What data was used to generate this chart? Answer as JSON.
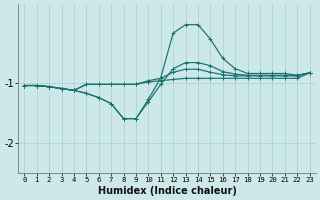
{
  "xlabel": "Humidex (Indice chaleur)",
  "bg_color": "#cce8e8",
  "grid_color": "#aacfcf",
  "line_color": "#1a7070",
  "xlim_min": -0.5,
  "xlim_max": 23.5,
  "ylim_min": -2.5,
  "ylim_max": 0.3,
  "yticks": [
    -2,
    -1
  ],
  "xticks": [
    0,
    1,
    2,
    3,
    4,
    5,
    6,
    7,
    8,
    9,
    10,
    11,
    12,
    13,
    14,
    15,
    16,
    17,
    18,
    19,
    20,
    21,
    22,
    23
  ],
  "series": [
    {
      "x": [
        0,
        1,
        2,
        3,
        4,
        5,
        6,
        7,
        8,
        9,
        10,
        11,
        12,
        13,
        14,
        15,
        16,
        17,
        18,
        19,
        20,
        21,
        22,
        23
      ],
      "y": [
        -1.05,
        -1.05,
        -1.07,
        -1.1,
        -1.13,
        -1.18,
        -1.25,
        -1.35,
        -1.6,
        -1.6,
        -1.32,
        -1.03,
        -0.77,
        -0.67,
        -0.67,
        -0.72,
        -0.82,
        -0.86,
        -0.88,
        -0.88,
        -0.88,
        -0.88,
        -0.88,
        -0.84
      ]
    },
    {
      "x": [
        0,
        1,
        2,
        3,
        4,
        5,
        6,
        7,
        8,
        9,
        10,
        11,
        12,
        13,
        14,
        15,
        16,
        17,
        18,
        19,
        20,
        21,
        22,
        23
      ],
      "y": [
        -1.05,
        -1.05,
        -1.07,
        -1.1,
        -1.13,
        -1.03,
        -1.03,
        -1.03,
        -1.03,
        -1.03,
        -0.99,
        -0.97,
        -0.95,
        -0.93,
        -0.93,
        -0.93,
        -0.93,
        -0.93,
        -0.93,
        -0.93,
        -0.93,
        -0.93,
        -0.93,
        -0.84
      ]
    },
    {
      "x": [
        0,
        1,
        2,
        3,
        4,
        5,
        6,
        7,
        8,
        9,
        10,
        11,
        12,
        13,
        14,
        15,
        16,
        17,
        18,
        19,
        20,
        21,
        22,
        23
      ],
      "y": [
        -1.05,
        -1.05,
        -1.07,
        -1.1,
        -1.13,
        -1.03,
        -1.03,
        -1.03,
        -1.03,
        -1.03,
        -0.97,
        -0.93,
        -0.83,
        -0.78,
        -0.78,
        -0.83,
        -0.87,
        -0.89,
        -0.89,
        -0.89,
        -0.89,
        -0.89,
        -0.89,
        -0.84
      ]
    },
    {
      "x": [
        0,
        1,
        2,
        3,
        4,
        5,
        6,
        7,
        8,
        9,
        10,
        11,
        12,
        13,
        14,
        15,
        16,
        17,
        18,
        19,
        20,
        21,
        22,
        23
      ],
      "y": [
        -1.05,
        -1.05,
        -1.07,
        -1.1,
        -1.13,
        -1.18,
        -1.25,
        -1.35,
        -1.6,
        -1.6,
        -1.28,
        -0.92,
        -0.18,
        -0.04,
        -0.04,
        -0.28,
        -0.6,
        -0.77,
        -0.85,
        -0.85,
        -0.85,
        -0.85,
        -0.88,
        -0.84
      ]
    }
  ],
  "marker": "+",
  "markersize": 3,
  "linewidth": 0.85
}
